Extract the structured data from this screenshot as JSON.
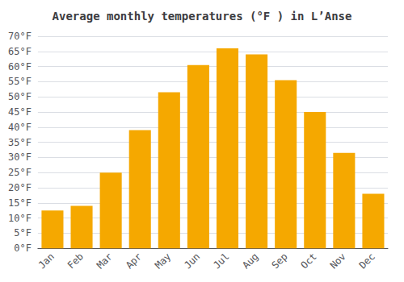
{
  "chart_data": {
    "type": "bar",
    "title": "Average monthly temperatures (°F ) in L’Anse",
    "categories": [
      "Jan",
      "Feb",
      "Mar",
      "Apr",
      "May",
      "Jun",
      "Jul",
      "Aug",
      "Sep",
      "Oct",
      "Nov",
      "Dec"
    ],
    "values": [
      12.5,
      14.0,
      25.0,
      39.0,
      51.5,
      60.5,
      66.0,
      64.0,
      55.5,
      45.0,
      31.5,
      18.0
    ],
    "color": "#F5A800",
    "ylim": [
      0,
      70
    ],
    "yticks": [
      {
        "value": 0,
        "label": "0°F"
      },
      {
        "value": 5,
        "label": "5°F"
      },
      {
        "value": 10,
        "label": "10°F"
      },
      {
        "value": 15,
        "label": "15°F"
      },
      {
        "value": 20,
        "label": "20°F"
      },
      {
        "value": 25,
        "label": "25°F"
      },
      {
        "value": 30,
        "label": "30°F"
      },
      {
        "value": 35,
        "label": "35°F"
      },
      {
        "value": 40,
        "label": "40°F"
      },
      {
        "value": 45,
        "label": "45°F"
      },
      {
        "value": 50,
        "label": "50°F"
      },
      {
        "value": 55,
        "label": "55°F"
      },
      {
        "value": 60,
        "label": "60°F"
      },
      {
        "value": 65,
        "label": "65°F"
      },
      {
        "value": 70,
        "label": "70°F"
      }
    ],
    "grid": true
  }
}
